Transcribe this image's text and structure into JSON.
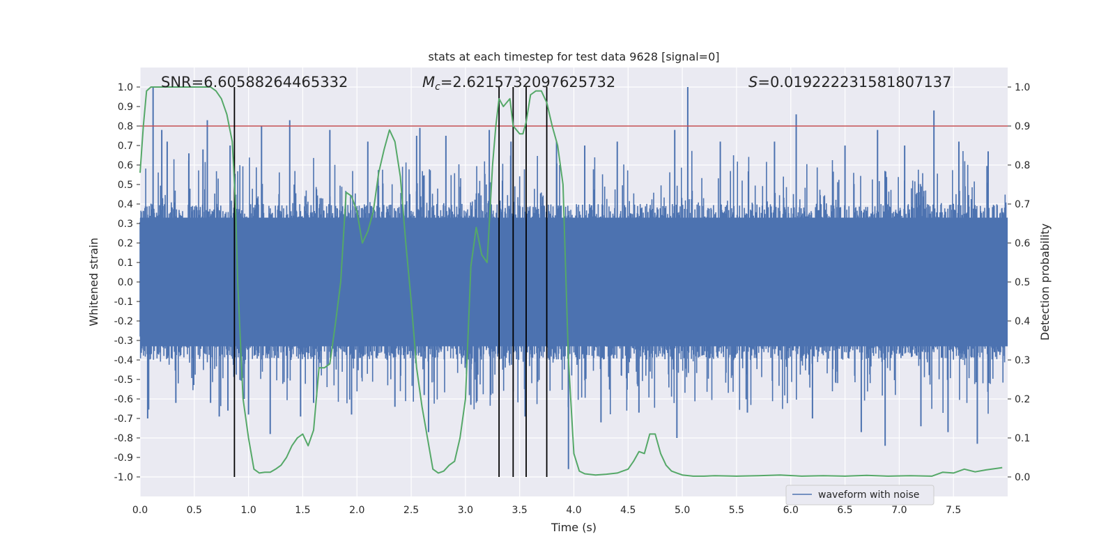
{
  "chart_data": {
    "type": "line",
    "title": "stats at each timestep for test data 9628 [signal=0]",
    "xlabel": "Time (s)",
    "ylabel": "Whitened strain",
    "ylabel_right": "Detection probability",
    "xlim": [
      0.0,
      8.0
    ],
    "ylim": [
      -1.1,
      1.1
    ],
    "ylim_right": [
      -0.05,
      1.05
    ],
    "x_ticks": [
      0.0,
      0.5,
      1.0,
      1.5,
      2.0,
      2.5,
      3.0,
      3.5,
      4.0,
      4.5,
      5.0,
      5.5,
      6.0,
      6.5,
      7.0,
      7.5
    ],
    "x_tick_labels": [
      "0.0",
      "0.5",
      "1.0",
      "1.5",
      "2.0",
      "2.5",
      "3.0",
      "3.5",
      "4.0",
      "4.5",
      "5.0",
      "5.5",
      "6.0",
      "6.5",
      "7.0",
      "7.5"
    ],
    "y_ticks": [
      1.0,
      0.9,
      0.8,
      0.7,
      0.6,
      0.5,
      0.4,
      0.3,
      0.2,
      0.1,
      0.0,
      -0.1,
      -0.2,
      -0.3,
      -0.4,
      -0.5,
      -0.6,
      -0.7,
      -0.8,
      -0.9,
      -1.0
    ],
    "y_tick_labels": [
      "1.0",
      "0.9",
      "0.8",
      "0.7",
      "0.6",
      "0.5",
      "0.4",
      "0.3",
      "0.2",
      "0.1",
      "0.0",
      "-0.1",
      "-0.2",
      "-0.3",
      "-0.4",
      "-0.5",
      "-0.6",
      "-0.7",
      "-0.8",
      "-0.9",
      "-1.0"
    ],
    "y_right_ticks": [
      1.0,
      0.9,
      0.8,
      0.7,
      0.6,
      0.5,
      0.4,
      0.3,
      0.2,
      0.1,
      0.0
    ],
    "y_right_tick_labels": [
      "1.0",
      "0.9",
      "0.8",
      "0.7",
      "0.6",
      "0.5",
      "0.4",
      "0.3",
      "0.2",
      "0.1",
      "0.0"
    ],
    "grid": true,
    "legend": {
      "position": "lower-right",
      "entries": [
        {
          "label": "waveform with noise",
          "color": "#4c72b0"
        }
      ]
    },
    "annotations": {
      "snr_text": "SNR=6.60588264465332",
      "mc_symbol": "M",
      "mc_sub": "c",
      "mc_rest": "=2.6215732097625732",
      "s_symbol": "S",
      "s_rest": "=0.019222231581807137"
    },
    "threshold_right": 0.9,
    "trigger_times": [
      0.87,
      3.31,
      3.44,
      3.56,
      3.75
    ],
    "waveform": {
      "name": "waveform with noise",
      "color": "#4c72b0",
      "band_max": 0.4,
      "spikes": [
        [
          0.12,
          1.0
        ],
        [
          0.07,
          -0.7
        ],
        [
          0.2,
          0.78
        ],
        [
          0.25,
          0.72
        ],
        [
          0.33,
          -0.62
        ],
        [
          0.45,
          0.66
        ],
        [
          0.58,
          0.68
        ],
        [
          0.62,
          0.83
        ],
        [
          0.65,
          -0.62
        ],
        [
          0.73,
          -0.69
        ],
        [
          0.81,
          -0.66
        ],
        [
          0.83,
          0.7
        ],
        [
          0.96,
          -0.6
        ],
        [
          1.0,
          -0.68
        ],
        [
          1.12,
          0.8
        ],
        [
          1.2,
          -0.78
        ],
        [
          1.38,
          0.83
        ],
        [
          1.48,
          -0.69
        ],
        [
          1.6,
          -0.62
        ],
        [
          1.75,
          0.78
        ],
        [
          1.95,
          -0.68
        ],
        [
          2.1,
          0.72
        ],
        [
          2.35,
          -0.64
        ],
        [
          2.55,
          0.75
        ],
        [
          2.58,
          0.79
        ],
        [
          2.62,
          -0.58
        ],
        [
          2.66,
          -0.77
        ],
        [
          2.82,
          0.75
        ],
        [
          3.05,
          -0.63
        ],
        [
          3.22,
          0.78
        ],
        [
          3.42,
          0.72
        ],
        [
          3.55,
          -0.69
        ],
        [
          3.84,
          0.72
        ],
        [
          3.95,
          -0.96
        ],
        [
          4.1,
          0.7
        ],
        [
          4.25,
          -0.72
        ],
        [
          4.4,
          0.72
        ],
        [
          4.6,
          -0.67
        ],
        [
          4.93,
          0.78
        ],
        [
          4.95,
          -0.8
        ],
        [
          5.05,
          1.0
        ],
        [
          5.35,
          0.72
        ],
        [
          5.6,
          -0.67
        ],
        [
          5.85,
          0.72
        ],
        [
          6.05,
          0.86
        ],
        [
          6.2,
          -0.7
        ],
        [
          6.5,
          0.7
        ],
        [
          6.65,
          -0.77
        ],
        [
          6.8,
          0.78
        ],
        [
          6.87,
          -0.84
        ],
        [
          7.05,
          0.7
        ],
        [
          7.2,
          -0.74
        ],
        [
          7.32,
          0.88
        ],
        [
          7.45,
          -0.77
        ],
        [
          7.55,
          0.72
        ],
        [
          7.72,
          -0.83
        ],
        [
          7.82,
          0.67
        ]
      ]
    },
    "series": [
      {
        "name": "",
        "color": "#55a868",
        "axis": "right",
        "x": [
          0.0,
          0.03,
          0.06,
          0.1,
          0.2,
          0.3,
          0.4,
          0.5,
          0.6,
          0.65,
          0.7,
          0.75,
          0.8,
          0.85,
          0.88,
          0.9,
          0.95,
          1.0,
          1.05,
          1.1,
          1.15,
          1.2,
          1.25,
          1.3,
          1.35,
          1.4,
          1.45,
          1.5,
          1.55,
          1.6,
          1.65,
          1.7,
          1.75,
          1.8,
          1.85,
          1.9,
          1.95,
          2.0,
          2.05,
          2.1,
          2.15,
          2.2,
          2.25,
          2.3,
          2.35,
          2.4,
          2.45,
          2.5,
          2.55,
          2.6,
          2.65,
          2.7,
          2.75,
          2.8,
          2.85,
          2.9,
          2.95,
          3.0,
          3.05,
          3.1,
          3.15,
          3.2,
          3.25,
          3.28,
          3.31,
          3.35,
          3.38,
          3.41,
          3.44,
          3.5,
          3.53,
          3.56,
          3.6,
          3.65,
          3.7,
          3.75,
          3.8,
          3.85,
          3.9,
          3.95,
          4.0,
          4.05,
          4.1,
          4.2,
          4.3,
          4.4,
          4.5,
          4.55,
          4.6,
          4.65,
          4.7,
          4.75,
          4.8,
          4.85,
          4.9,
          4.95,
          5.0,
          5.1,
          5.2,
          5.3,
          5.5,
          5.7,
          5.9,
          6.1,
          6.3,
          6.5,
          6.7,
          6.9,
          7.1,
          7.3,
          7.4,
          7.5,
          7.6,
          7.7,
          7.8,
          7.9,
          7.95
        ],
        "values": [
          0.78,
          0.9,
          0.99,
          1.0,
          1.0,
          1.0,
          1.0,
          1.0,
          1.0,
          1.0,
          0.99,
          0.97,
          0.93,
          0.86,
          0.7,
          0.5,
          0.2,
          0.1,
          0.02,
          0.01,
          0.012,
          0.012,
          0.02,
          0.03,
          0.05,
          0.08,
          0.1,
          0.11,
          0.08,
          0.12,
          0.28,
          0.28,
          0.29,
          0.39,
          0.5,
          0.73,
          0.72,
          0.68,
          0.6,
          0.63,
          0.68,
          0.78,
          0.84,
          0.89,
          0.86,
          0.77,
          0.6,
          0.45,
          0.28,
          0.18,
          0.1,
          0.02,
          0.01,
          0.015,
          0.03,
          0.04,
          0.1,
          0.2,
          0.54,
          0.64,
          0.57,
          0.55,
          0.8,
          0.9,
          0.97,
          0.95,
          0.96,
          0.97,
          0.9,
          0.88,
          0.88,
          0.91,
          0.98,
          0.99,
          0.99,
          0.96,
          0.9,
          0.85,
          0.75,
          0.3,
          0.06,
          0.015,
          0.008,
          0.005,
          0.007,
          0.01,
          0.02,
          0.04,
          0.065,
          0.06,
          0.11,
          0.11,
          0.06,
          0.03,
          0.015,
          0.01,
          0.005,
          0.002,
          0.002,
          0.003,
          0.002,
          0.003,
          0.005,
          0.002,
          0.003,
          0.002,
          0.004,
          0.002,
          0.003,
          0.002,
          0.012,
          0.01,
          0.02,
          0.013,
          0.018,
          0.022,
          0.024
        ]
      }
    ]
  }
}
